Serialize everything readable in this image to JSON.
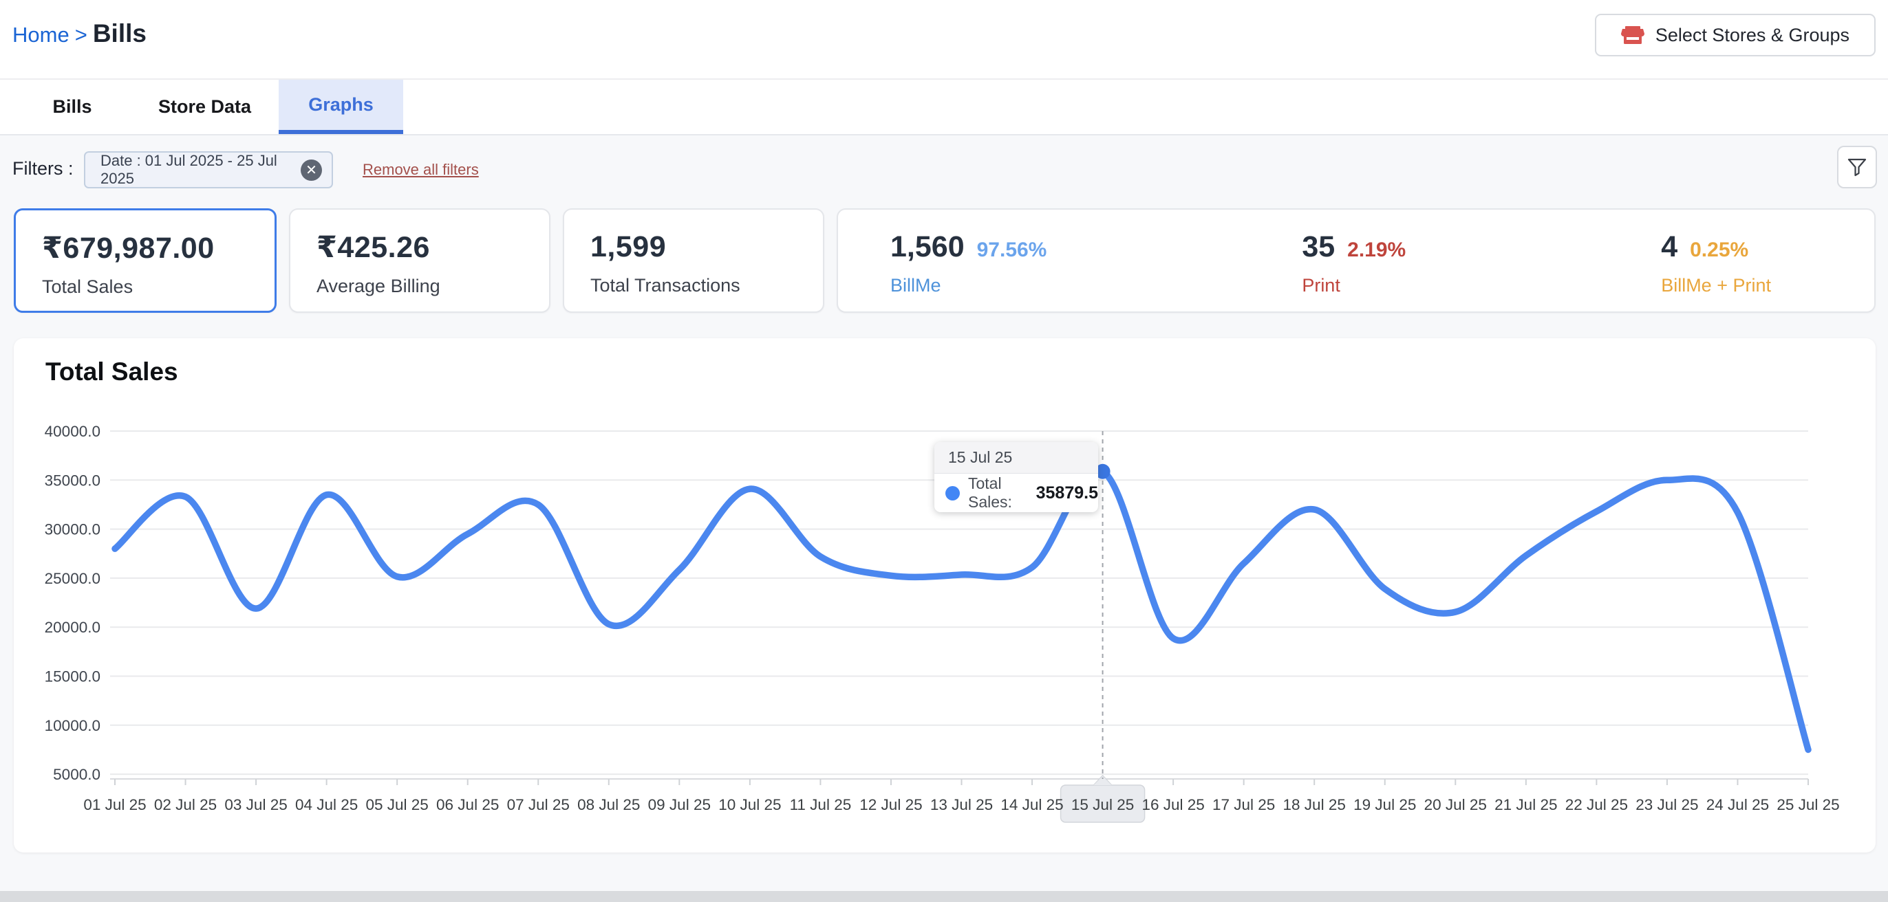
{
  "breadcrumb": {
    "home": "Home",
    "separator": ">",
    "current": "Bills"
  },
  "header": {
    "select_stores_label": "Select Stores & Groups",
    "store_icon_color": "#d9534f"
  },
  "tabs": [
    {
      "label": "Bills",
      "active": false
    },
    {
      "label": "Store Data",
      "active": false
    },
    {
      "label": "Graphs",
      "active": true
    }
  ],
  "filters": {
    "label": "Filters :",
    "chip_text": "Date : 01 Jul 2025 - 25 Jul 2025",
    "remove_all_label": "Remove all filters"
  },
  "stats": {
    "cards": [
      {
        "value": "₹679,987.00",
        "label": "Total Sales",
        "selected": true
      },
      {
        "value": "₹425.26",
        "label": "Average Billing",
        "selected": false
      },
      {
        "value": "1,599",
        "label": "Total Transactions",
        "selected": false
      }
    ],
    "breakdown": [
      {
        "value": "1,560",
        "percent": "97.56%",
        "label": "BillMe",
        "label_color": "#4e92da",
        "percent_color": "#6ba4ec"
      },
      {
        "value": "35",
        "percent": "2.19%",
        "label": "Print",
        "label_color": "#bf443c",
        "percent_color": "#bf443c"
      },
      {
        "value": "4",
        "percent": "0.25%",
        "label": "BillMe + Print",
        "label_color": "#e9a63c",
        "percent_color": "#e9a63c"
      }
    ]
  },
  "chart_card": {
    "title": "Total Sales"
  },
  "chart_data": {
    "type": "line",
    "title": "Total Sales",
    "x": [
      "01 Jul 25",
      "02 Jul 25",
      "03 Jul 25",
      "04 Jul 25",
      "05 Jul 25",
      "06 Jul 25",
      "07 Jul 25",
      "08 Jul 25",
      "09 Jul 25",
      "10 Jul 25",
      "11 Jul 25",
      "12 Jul 25",
      "13 Jul 25",
      "14 Jul 25",
      "15 Jul 25",
      "16 Jul 25",
      "17 Jul 25",
      "18 Jul 25",
      "19 Jul 25",
      "20 Jul 25",
      "21 Jul 25",
      "22 Jul 25",
      "23 Jul 25",
      "24 Jul 25",
      "25 Jul 25"
    ],
    "series": [
      {
        "name": "Total Sales",
        "values": [
          28000,
          33300,
          21900,
          33500,
          25150,
          29500,
          32500,
          20300,
          25850,
          34100,
          27200,
          25250,
          25350,
          26100,
          35879.5,
          18857,
          26500,
          32000,
          23900,
          21550,
          27300,
          31800,
          35000,
          31700,
          7500
        ]
      }
    ],
    "ylim": [
      5000,
      40000
    ],
    "ytick_step": 5000,
    "grid": true,
    "line_color": "#4b87ef",
    "marker_color": "#3b76e0",
    "highlighted_index": 14,
    "highlighted_label": "15 Jul 25",
    "tooltip": {
      "date": "15 Jul 25",
      "series_label": "Total Sales:",
      "value": "35879.5"
    }
  }
}
